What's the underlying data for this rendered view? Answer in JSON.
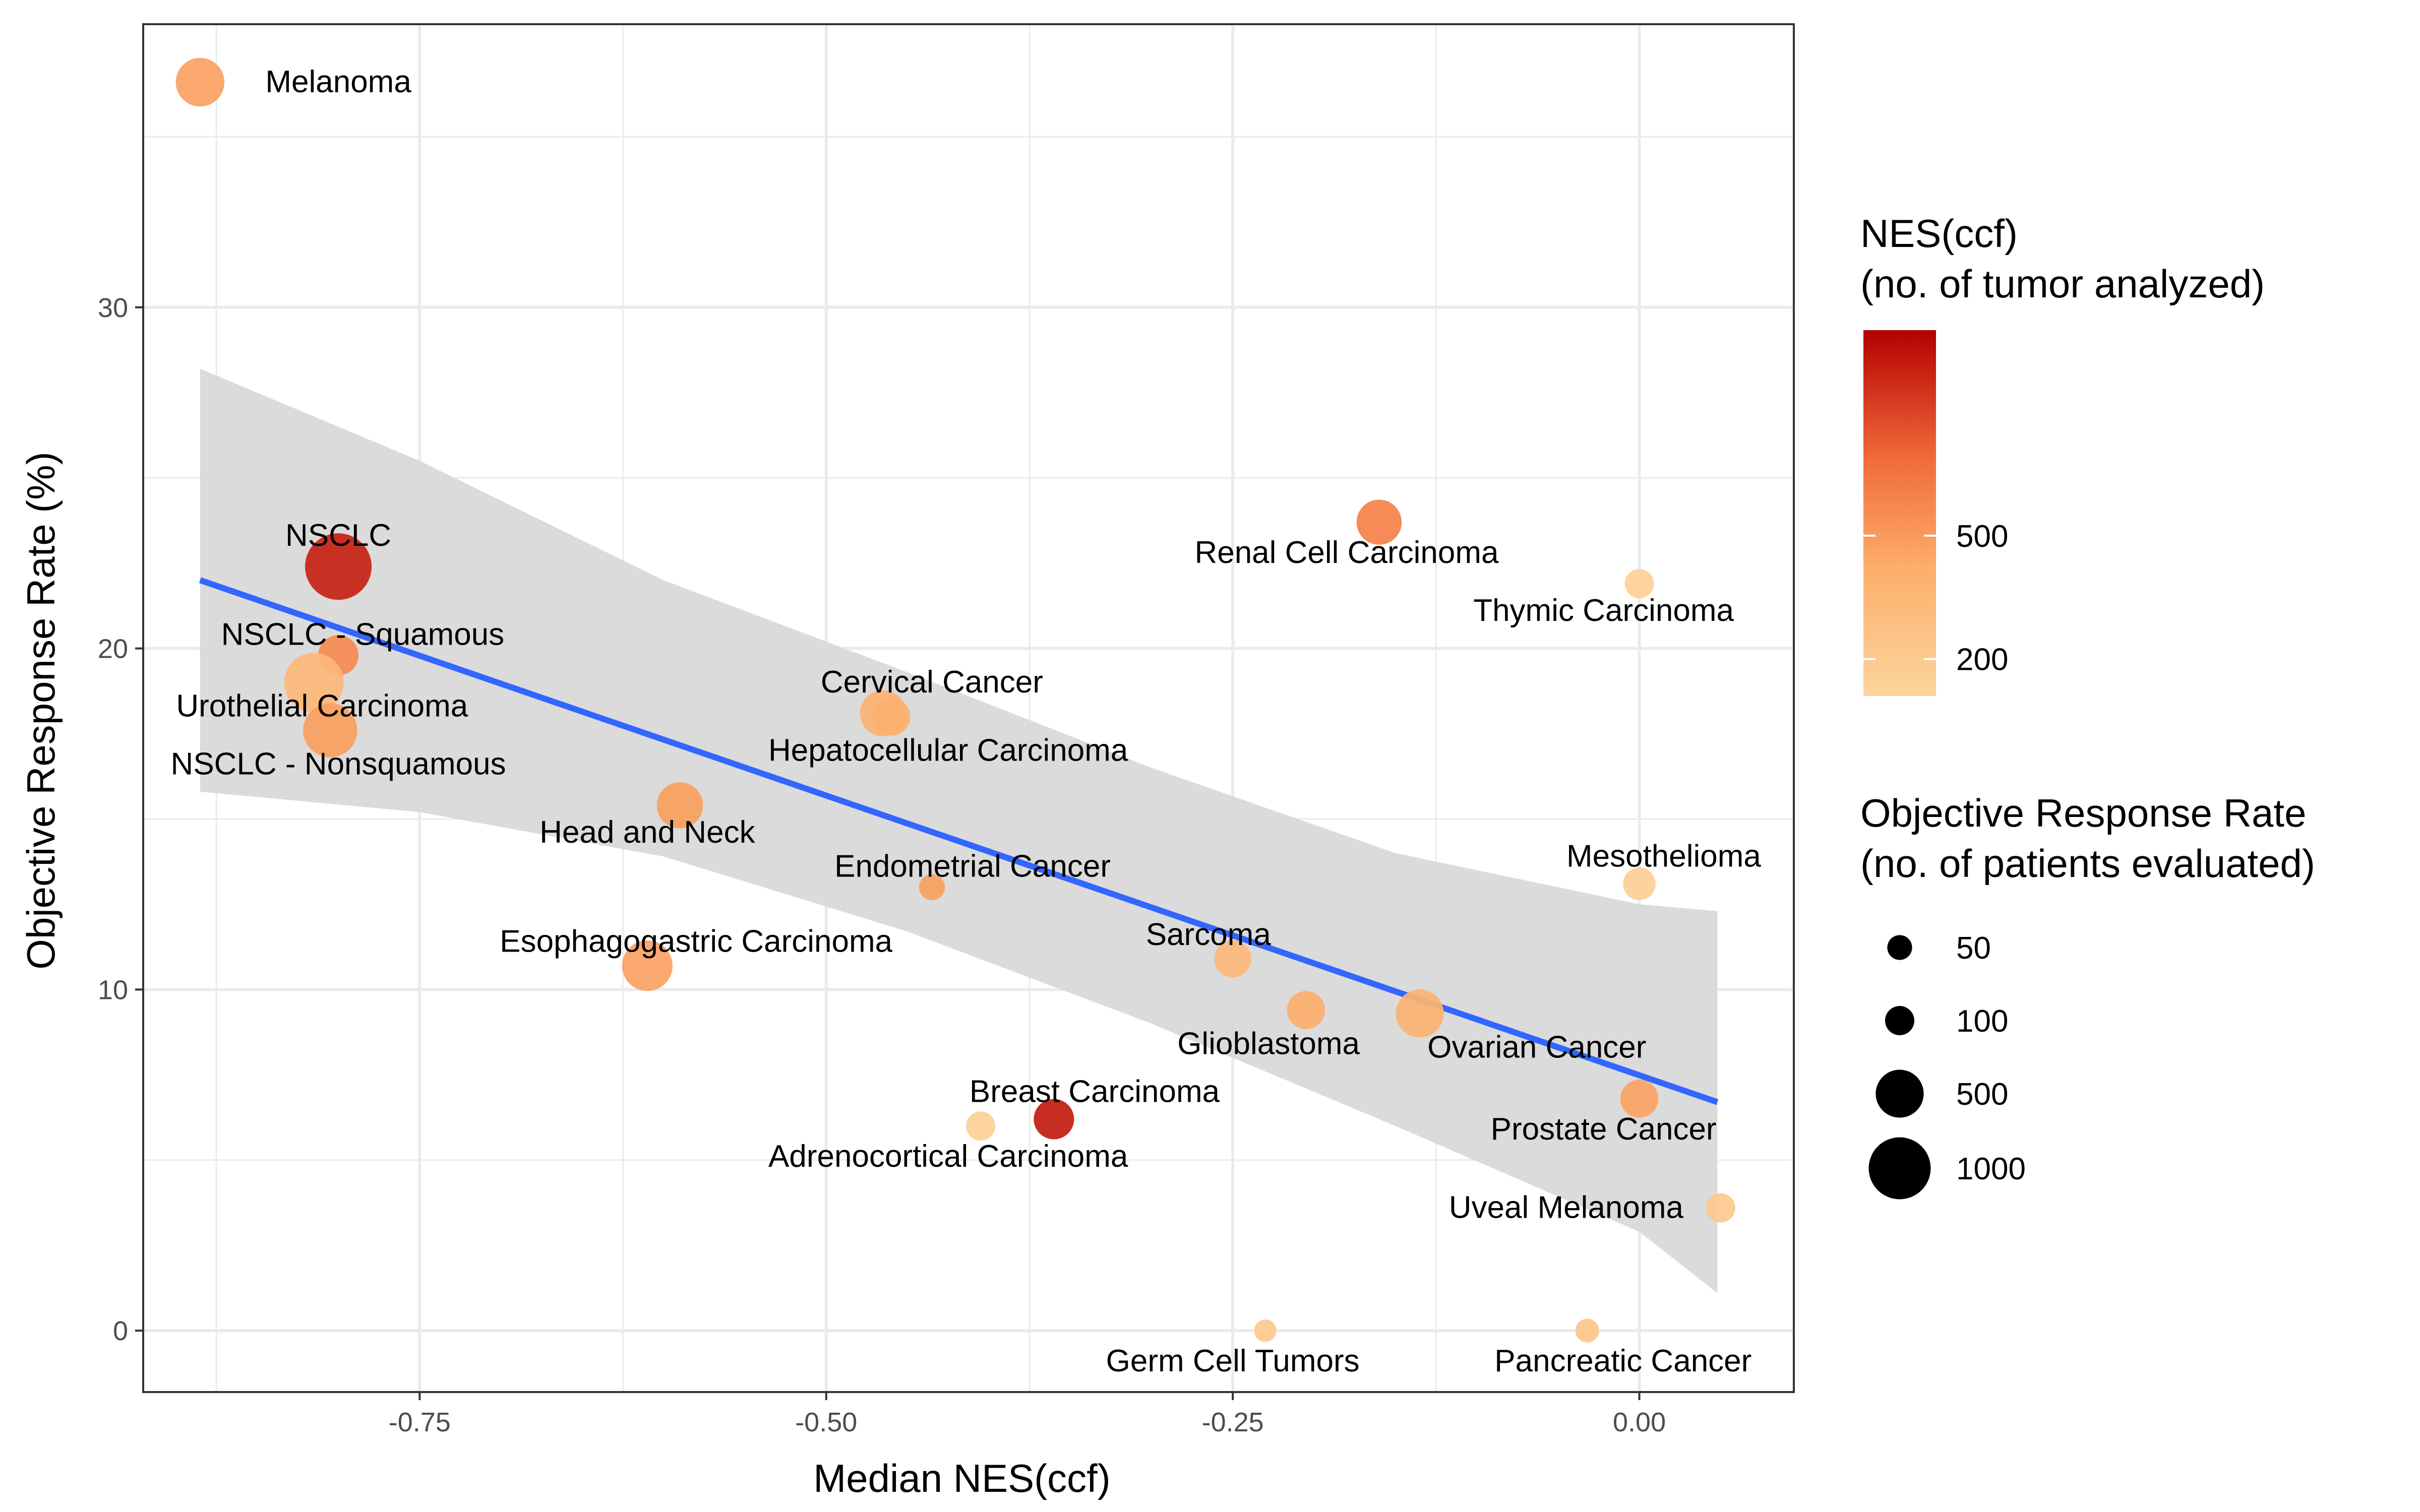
{
  "chart_data": {
    "type": "scatter",
    "xlabel": "Median NES(ccf)",
    "ylabel": "Objective Response Rate (%)",
    "xlim": [
      -0.92,
      0.095
    ],
    "ylim": [
      -1.8,
      38.3
    ],
    "x_ticks": [
      -0.75,
      -0.5,
      -0.25,
      0.0
    ],
    "x_tick_labels": [
      "-0.75",
      "-0.50",
      "-0.25",
      "0.00"
    ],
    "y_ticks": [
      0,
      10,
      20,
      30
    ],
    "y_tick_labels": [
      "0",
      "10",
      "20",
      "30"
    ],
    "grid": true,
    "points": [
      {
        "label": "Melanoma",
        "x": -0.885,
        "y": 36.6,
        "patients": 520,
        "tumors": 470
      },
      {
        "label": "NSCLC",
        "x": -0.8,
        "y": 22.4,
        "patients": 1200,
        "tumors": 900
      },
      {
        "label": "NSCLC - Squamous",
        "x": -0.8,
        "y": 19.8,
        "patients": 300,
        "tumors": 560
      },
      {
        "label": "Urothelial Carcinoma",
        "x": -0.815,
        "y": 19.0,
        "patients": 900,
        "tumors": 330
      },
      {
        "label": "NSCLC - Nonsquamous",
        "x": -0.805,
        "y": 17.6,
        "patients": 700,
        "tumors": 480
      },
      {
        "label": "Head and Neck",
        "x": -0.59,
        "y": 15.4,
        "patients": 450,
        "tumors": 480
      },
      {
        "label": "Esophagogastric Carcinoma",
        "x": -0.61,
        "y": 10.7,
        "patients": 580,
        "tumors": 470
      },
      {
        "label": "Cervical Cancer",
        "x": -0.465,
        "y": 18.1,
        "patients": 450,
        "tumors": 380
      },
      {
        "label": "Hepatocellular Carcinoma",
        "x": -0.46,
        "y": 18.0,
        "patients": 250,
        "tumors": 400
      },
      {
        "label": "Endometrial Cancer",
        "x": -0.435,
        "y": 13.0,
        "patients": 60,
        "tumors": 480
      },
      {
        "label": "Breast Carcinoma",
        "x": -0.36,
        "y": 6.2,
        "patients": 300,
        "tumors": 920
      },
      {
        "label": "Adrenocortical Carcinoma",
        "x": -0.405,
        "y": 6.0,
        "patients": 100,
        "tumors": 150
      },
      {
        "label": "Renal Cell Carcinoma",
        "x": -0.16,
        "y": 23.7,
        "patients": 420,
        "tumors": 600
      },
      {
        "label": "Sarcoma",
        "x": -0.25,
        "y": 10.9,
        "patients": 230,
        "tumors": 330
      },
      {
        "label": "Glioblastoma",
        "x": -0.205,
        "y": 9.4,
        "patients": 250,
        "tumors": 420
      },
      {
        "label": "Ovarian Cancer",
        "x": -0.135,
        "y": 9.3,
        "patients": 500,
        "tumors": 380
      },
      {
        "label": "Prostate Cancer",
        "x": 0.0,
        "y": 6.8,
        "patients": 250,
        "tumors": 460
      },
      {
        "label": "Thymic Carcinoma",
        "x": 0.0,
        "y": 21.9,
        "patients": 100,
        "tumors": 150
      },
      {
        "label": "Mesothelioma",
        "x": 0.0,
        "y": 13.1,
        "patients": 150,
        "tumors": 160
      },
      {
        "label": "Uveal Melanoma",
        "x": 0.05,
        "y": 3.6,
        "patients": 100,
        "tumors": 200
      },
      {
        "label": "Germ Cell Tumors",
        "x": -0.23,
        "y": 0.0,
        "patients": 30,
        "tumors": 200
      },
      {
        "label": "Pancreatic Cancer",
        "x": -0.032,
        "y": 0.0,
        "patients": 40,
        "tumors": 230
      }
    ],
    "trend_line": {
      "x": [
        -0.885,
        0.048
      ],
      "y": [
        22.0,
        6.7
      ]
    },
    "confidence_band": {
      "x": [
        -0.885,
        -0.75,
        -0.6,
        -0.45,
        -0.3,
        -0.15,
        0.0,
        0.048
      ],
      "lower": [
        15.8,
        15.2,
        13.9,
        11.7,
        9.0,
        6.0,
        2.9,
        1.1
      ],
      "upper": [
        28.2,
        25.5,
        22.0,
        19.3,
        16.5,
        14.0,
        12.5,
        12.3
      ]
    },
    "color_legend": {
      "title_lines": [
        "NES(ccf)",
        "(no. of tumor analyzed)"
      ],
      "tick_values": [
        500,
        200
      ],
      "tick_labels": [
        "500",
        "200"
      ],
      "range": [
        110,
        1000
      ],
      "color_low": "#fdd49e",
      "color_high": "#b30000"
    },
    "size_legend": {
      "title_lines": [
        "Objective Response Rate",
        "(no. of patients evaluated)"
      ],
      "values": [
        50,
        100,
        500,
        1000
      ],
      "labels": [
        "50",
        "100",
        "500",
        "1000"
      ],
      "color": "#000000"
    },
    "colors": {
      "trend_line": "#3366ff",
      "band": "#d9d9d9",
      "panel_border": "#333333",
      "grid": "#ebebeb"
    }
  }
}
